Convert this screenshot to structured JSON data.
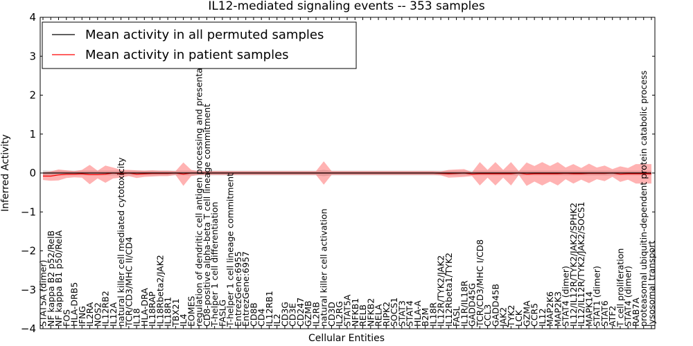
{
  "chart_data": {
    "type": "line",
    "title": "IL12-mediated signaling events -- 353 samples",
    "xlabel": "Cellular Entities",
    "ylabel": "Inferred Activity",
    "ylim": [
      -4,
      4
    ],
    "yticks": [
      -4,
      -3,
      -2,
      -1,
      0,
      1,
      2,
      3,
      4
    ],
    "grid": false,
    "legend_position": "top-left",
    "categories": [
      "STAT5A (dimer)",
      "NF kappa B2 p52/RelB",
      "NF kappa B1 p50/RelA",
      "FOS",
      "HLA-DRB5",
      "IFNG",
      "IL2RA",
      "NOS2",
      "IL12RB2",
      "IL12A",
      "natural killer cell mediated cytotoxicity",
      "TCR/CD3/MHC II/CD4",
      "IL18",
      "HLA-DRA",
      "IL18RAP",
      "IL18Rbeta2/JAK2",
      "IL18R1",
      "TBX21",
      "IL4",
      "EOMES",
      "regulation of dendritic cell antigen processing and presentation",
      "CD8-positive alpha-beta T cell lineage commitment",
      "T-helper 1 cell differentiation",
      "FASLG",
      "T-helper 1 cell lineage commitment",
      "EntrezGene:6955",
      "EntrezGene:6957",
      "CD8B",
      "CD4",
      "IL12RB1",
      "IL2",
      "CD3G",
      "CD3E",
      "CD247",
      "GZMB",
      "IL2RB",
      "natural killer cell activation",
      "CD3D",
      "IL2RG",
      "STAT5A",
      "NFKB1",
      "RELB",
      "NFKB2",
      "RELA",
      "RIPK2",
      "SOCS1",
      "STAT3",
      "STAT4",
      "HLA-A",
      "B2M",
      "IL18R",
      "IL12R/TYK2/JAK2",
      "IL12Rbeta1/TYK2",
      "FASL",
      "IL1R/IL18R",
      "GADD45G",
      "TCR/CD3/MHC I/CD8",
      "CCL3",
      "GADD45B",
      "JAK2",
      "TYK2",
      "LCK",
      "GZMA",
      "CCR5",
      "IL12",
      "MAP2K6",
      "MAP2K3",
      "STAT4 (dimer)",
      "IL12/IL12R/TYK2/JAK2/SPHK2",
      "IL12/IL12R/TYK2/JAK2/SOCS1",
      "MAPK14",
      "STAT1 (dimer)",
      "STAT6",
      "ATF2",
      "T cell proliferation",
      "STAT4 (dimer)",
      "RAB7A",
      "proteasomal ubiquitin-dependent protein catabolic process",
      "lysosomal transport"
    ],
    "series": [
      {
        "name": "Mean activity in all permuted samples",
        "color": "#000000",
        "values": [
          0.0,
          0.0,
          0.0,
          0.0,
          0.0,
          0.0,
          0.0,
          0.0,
          0.0,
          0.0,
          0.0,
          0.0,
          0.0,
          0.0,
          0.0,
          0.0,
          0.0,
          0.0,
          0.0,
          0.0,
          0.0,
          0.0,
          0.0,
          0.0,
          0.0,
          0.0,
          0.0,
          0.0,
          0.0,
          0.0,
          0.0,
          0.0,
          0.0,
          0.0,
          0.0,
          0.0,
          0.0,
          0.0,
          0.0,
          0.0,
          0.0,
          0.0,
          0.0,
          0.0,
          0.0,
          0.0,
          0.0,
          0.0,
          0.0,
          0.0,
          0.0,
          0.0,
          0.0,
          0.0,
          0.0,
          0.0,
          0.0,
          0.0,
          0.0,
          0.0,
          0.0,
          0.0,
          0.0,
          0.0,
          0.0,
          0.0,
          0.0,
          0.0,
          0.0,
          0.0,
          0.0,
          0.0,
          0.0,
          0.0,
          0.0,
          0.0,
          0.0,
          0.0,
          0.0
        ],
        "band": [
          0.07,
          0.06,
          0.06,
          0.06,
          0.06,
          0.06,
          0.06,
          0.06,
          0.06,
          0.06,
          0.06,
          0.06,
          0.06,
          0.06,
          0.06,
          0.06,
          0.06,
          0.06,
          0.06,
          0.06,
          0.06,
          0.06,
          0.06,
          0.06,
          0.06,
          0.06,
          0.06,
          0.06,
          0.06,
          0.06,
          0.06,
          0.06,
          0.06,
          0.06,
          0.06,
          0.06,
          0.08,
          0.06,
          0.06,
          0.06,
          0.06,
          0.06,
          0.06,
          0.06,
          0.06,
          0.06,
          0.06,
          0.06,
          0.06,
          0.06,
          0.06,
          0.06,
          0.06,
          0.06,
          0.06,
          0.06,
          0.06,
          0.06,
          0.06,
          0.06,
          0.06,
          0.06,
          0.06,
          0.06,
          0.06,
          0.06,
          0.06,
          0.06,
          0.06,
          0.06,
          0.06,
          0.06,
          0.06,
          0.06,
          0.06,
          0.06,
          0.06,
          0.06,
          0.06
        ]
      },
      {
        "name": "Mean activity in patient samples",
        "color": "#ff0000",
        "values": [
          -0.08,
          -0.08,
          -0.05,
          -0.03,
          -0.03,
          -0.02,
          -0.04,
          -0.04,
          -0.03,
          0.0,
          -0.02,
          0.0,
          -0.03,
          -0.02,
          -0.01,
          -0.01,
          -0.01,
          0.0,
          -0.03,
          0.0,
          0.0,
          0.0,
          0.0,
          0.0,
          0.0,
          0.0,
          0.0,
          0.0,
          0.0,
          0.0,
          0.0,
          0.0,
          0.0,
          0.0,
          0.0,
          0.0,
          0.0,
          0.0,
          0.0,
          0.0,
          0.0,
          0.0,
          0.0,
          0.0,
          0.0,
          0.0,
          0.0,
          0.0,
          0.0,
          0.0,
          0.0,
          -0.01,
          -0.02,
          -0.01,
          0.0,
          -0.03,
          -0.02,
          -0.02,
          -0.02,
          -0.02,
          -0.02,
          0.0,
          -0.03,
          -0.02,
          -0.02,
          -0.02,
          -0.02,
          -0.01,
          -0.02,
          -0.02,
          -0.01,
          -0.01,
          -0.01,
          0.0,
          -0.03,
          -0.02,
          -0.02,
          -0.02,
          -0.02
        ],
        "band": [
          0.1,
          0.12,
          0.14,
          0.1,
          0.08,
          0.1,
          0.25,
          0.1,
          0.22,
          0.14,
          0.1,
          0.08,
          0.1,
          0.08,
          0.08,
          0.07,
          0.07,
          0.05,
          0.3,
          0.08,
          0.05,
          0.05,
          0.05,
          0.05,
          0.05,
          0.05,
          0.05,
          0.05,
          0.05,
          0.05,
          0.05,
          0.05,
          0.05,
          0.05,
          0.05,
          0.05,
          0.3,
          0.05,
          0.05,
          0.05,
          0.05,
          0.05,
          0.05,
          0.05,
          0.05,
          0.05,
          0.05,
          0.05,
          0.05,
          0.05,
          0.05,
          0.05,
          0.1,
          0.1,
          0.1,
          0.05,
          0.3,
          0.1,
          0.3,
          0.1,
          0.3,
          0.05,
          0.3,
          0.2,
          0.3,
          0.2,
          0.3,
          0.15,
          0.25,
          0.15,
          0.25,
          0.15,
          0.2,
          0.1,
          0.2,
          0.15,
          0.25,
          0.25,
          0.25
        ]
      }
    ]
  }
}
